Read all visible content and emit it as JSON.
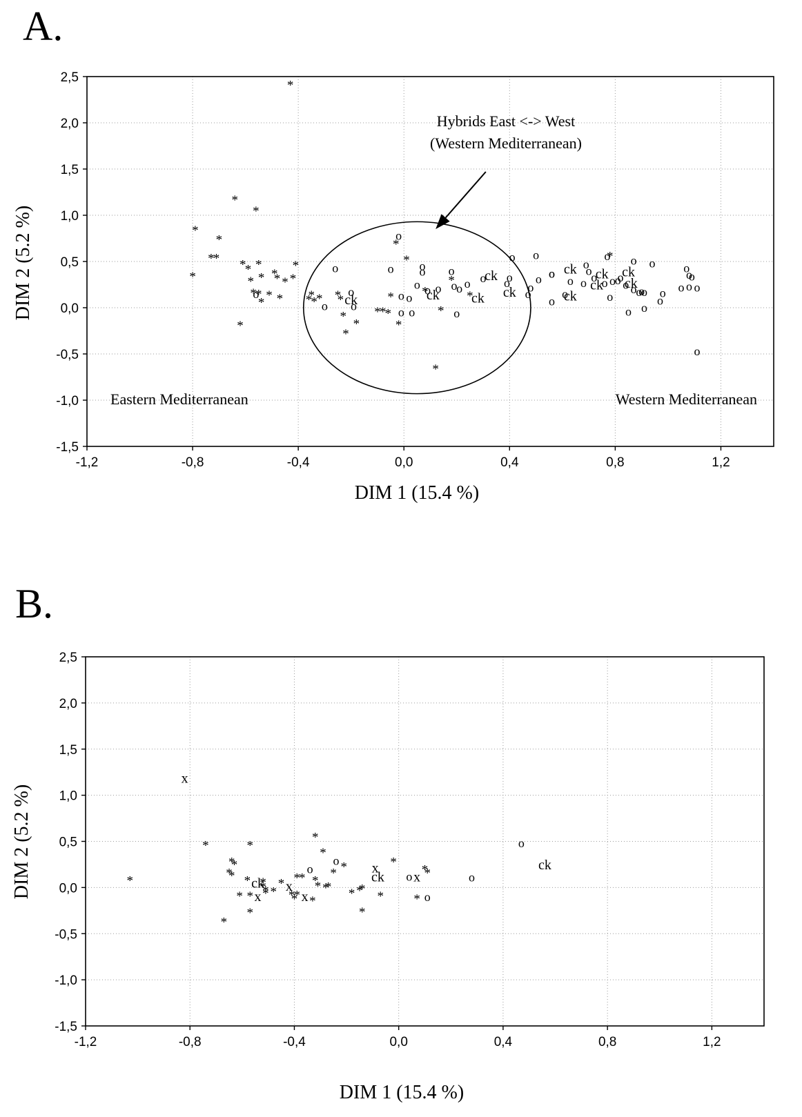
{
  "chart_data": [
    {
      "type": "scatter",
      "panel_label": "A.",
      "xlabel": "DIM 1 (15.4 %)",
      "ylabel": "DIM 2 (5.2 %)",
      "xlim": [
        -1.2,
        1.4
      ],
      "ylim": [
        -1.5,
        2.5
      ],
      "xticks": [
        -1.2,
        -0.8,
        -0.4,
        0.0,
        0.4,
        0.8,
        1.2
      ],
      "yticks": [
        -1.5,
        -1.0,
        -0.5,
        0.0,
        0.5,
        1.0,
        1.5,
        2.0,
        2.5
      ],
      "xtick_labels": [
        "-1,2",
        "-0,8",
        "-0,4",
        "0,0",
        "0,4",
        "0,8",
        "1,2"
      ],
      "ytick_labels": [
        "-1,5",
        "-1,0",
        "-0,5",
        "0,0",
        "0,5",
        "1,0",
        "1,5",
        "2,0",
        "2,5"
      ],
      "grid": true,
      "annotations": {
        "hybrids_line1": "Hybrids East <-> West",
        "hybrids_line2": "(Western Mediterranean)",
        "east": "Eastern Mediterranean",
        "west": "Western Mediterranean"
      },
      "ellipse": {
        "cx": 0.05,
        "cy": 0.0,
        "rx": 0.43,
        "ry": 0.93
      },
      "arrow": {
        "from": [
          0.31,
          1.47
        ],
        "to": [
          0.12,
          0.85
        ]
      },
      "points": [
        {
          "x": -0.43,
          "y": 2.45,
          "m": "*"
        },
        {
          "x": -0.64,
          "y": 1.21,
          "m": "*"
        },
        {
          "x": -0.56,
          "y": 1.09,
          "m": "*"
        },
        {
          "x": -0.79,
          "y": 0.88,
          "m": "*"
        },
        {
          "x": -0.7,
          "y": 0.78,
          "m": "*"
        },
        {
          "x": -0.73,
          "y": 0.58,
          "m": "*"
        },
        {
          "x": -0.71,
          "y": 0.58,
          "m": "*"
        },
        {
          "x": -0.61,
          "y": 0.51,
          "m": "*"
        },
        {
          "x": -0.59,
          "y": 0.46,
          "m": "*"
        },
        {
          "x": -0.55,
          "y": 0.51,
          "m": "*"
        },
        {
          "x": -0.49,
          "y": 0.41,
          "m": "*"
        },
        {
          "x": -0.41,
          "y": 0.5,
          "m": "*"
        },
        {
          "x": -0.8,
          "y": 0.38,
          "m": "*"
        },
        {
          "x": -0.58,
          "y": 0.33,
          "m": "*"
        },
        {
          "x": -0.54,
          "y": 0.37,
          "m": "*"
        },
        {
          "x": -0.48,
          "y": 0.36,
          "m": "*"
        },
        {
          "x": -0.45,
          "y": 0.32,
          "m": "*"
        },
        {
          "x": -0.42,
          "y": 0.36,
          "m": "*"
        },
        {
          "x": -0.57,
          "y": 0.2,
          "m": "*"
        },
        {
          "x": -0.55,
          "y": 0.19,
          "m": "*"
        },
        {
          "x": -0.51,
          "y": 0.18,
          "m": "*"
        },
        {
          "x": -0.56,
          "y": 0.15,
          "m": "o"
        },
        {
          "x": -0.54,
          "y": 0.1,
          "m": "*"
        },
        {
          "x": -0.47,
          "y": 0.14,
          "m": "*"
        },
        {
          "x": -0.62,
          "y": -0.15,
          "m": "*"
        },
        {
          "x": -0.35,
          "y": 0.18,
          "m": "*"
        },
        {
          "x": -0.36,
          "y": 0.13,
          "m": "*"
        },
        {
          "x": -0.34,
          "y": 0.11,
          "m": "*"
        },
        {
          "x": -0.32,
          "y": 0.14,
          "m": "*"
        },
        {
          "x": -0.3,
          "y": 0.02,
          "m": "o"
        },
        {
          "x": -0.26,
          "y": 0.43,
          "m": "o"
        },
        {
          "x": -0.25,
          "y": 0.18,
          "m": "*"
        },
        {
          "x": -0.24,
          "y": 0.13,
          "m": "*"
        },
        {
          "x": -0.23,
          "y": -0.05,
          "m": "*"
        },
        {
          "x": -0.22,
          "y": -0.24,
          "m": "*"
        },
        {
          "x": -0.2,
          "y": 0.17,
          "m": "o"
        },
        {
          "x": -0.2,
          "y": 0.09,
          "m": "ck"
        },
        {
          "x": -0.19,
          "y": 0.02,
          "m": "o"
        },
        {
          "x": -0.18,
          "y": -0.13,
          "m": "*"
        },
        {
          "x": -0.1,
          "y": 0.0,
          "m": "*"
        },
        {
          "x": -0.08,
          "y": 0.0,
          "m": "*"
        },
        {
          "x": -0.06,
          "y": -0.02,
          "m": "*"
        },
        {
          "x": -0.05,
          "y": 0.42,
          "m": "o"
        },
        {
          "x": -0.05,
          "y": 0.16,
          "m": "*"
        },
        {
          "x": -0.03,
          "y": 0.73,
          "m": "*"
        },
        {
          "x": -0.02,
          "y": 0.78,
          "m": "o"
        },
        {
          "x": -0.01,
          "y": -0.05,
          "m": "o"
        },
        {
          "x": -0.02,
          "y": -0.14,
          "m": "*"
        },
        {
          "x": -0.01,
          "y": 0.13,
          "m": "o"
        },
        {
          "x": 0.01,
          "y": 0.56,
          "m": "*"
        },
        {
          "x": 0.02,
          "y": 0.11,
          "m": "o"
        },
        {
          "x": 0.03,
          "y": -0.05,
          "m": "o"
        },
        {
          "x": 0.05,
          "y": 0.25,
          "m": "o"
        },
        {
          "x": 0.07,
          "y": 0.45,
          "m": "o"
        },
        {
          "x": 0.07,
          "y": 0.39,
          "m": "o"
        },
        {
          "x": 0.08,
          "y": 0.22,
          "m": "*"
        },
        {
          "x": 0.09,
          "y": 0.19,
          "m": "o"
        },
        {
          "x": 0.11,
          "y": 0.14,
          "m": "ck"
        },
        {
          "x": 0.13,
          "y": 0.21,
          "m": "o"
        },
        {
          "x": 0.14,
          "y": 0.01,
          "m": "*"
        },
        {
          "x": 0.12,
          "y": -0.62,
          "m": "*"
        },
        {
          "x": 0.18,
          "y": 0.4,
          "m": "o"
        },
        {
          "x": 0.18,
          "y": 0.34,
          "m": "*"
        },
        {
          "x": 0.19,
          "y": 0.24,
          "m": "o"
        },
        {
          "x": 0.2,
          "y": -0.06,
          "m": "o"
        },
        {
          "x": 0.21,
          "y": 0.21,
          "m": "o"
        },
        {
          "x": 0.24,
          "y": 0.26,
          "m": "o"
        },
        {
          "x": 0.25,
          "y": 0.17,
          "m": "*"
        },
        {
          "x": 0.28,
          "y": 0.11,
          "m": "ck"
        },
        {
          "x": 0.3,
          "y": 0.32,
          "m": "o"
        },
        {
          "x": 0.33,
          "y": 0.35,
          "m": "ck"
        },
        {
          "x": 0.39,
          "y": 0.27,
          "m": "o"
        },
        {
          "x": 0.4,
          "y": 0.33,
          "m": "o"
        },
        {
          "x": 0.4,
          "y": 0.17,
          "m": "ck"
        },
        {
          "x": 0.41,
          "y": 0.55,
          "m": "o"
        },
        {
          "x": 0.47,
          "y": 0.15,
          "m": "o"
        },
        {
          "x": 0.48,
          "y": 0.22,
          "m": "o"
        },
        {
          "x": 0.5,
          "y": 0.57,
          "m": "o"
        },
        {
          "x": 0.51,
          "y": 0.31,
          "m": "o"
        },
        {
          "x": 0.56,
          "y": 0.37,
          "m": "o"
        },
        {
          "x": 0.56,
          "y": 0.37,
          "m": "o"
        },
        {
          "x": 0.56,
          "y": 0.07,
          "m": "o"
        },
        {
          "x": 0.61,
          "y": 0.15,
          "m": "o"
        },
        {
          "x": 0.63,
          "y": 0.42,
          "m": "ck"
        },
        {
          "x": 0.63,
          "y": 0.29,
          "m": "o"
        },
        {
          "x": 0.63,
          "y": 0.13,
          "m": "ck"
        },
        {
          "x": 0.68,
          "y": 0.27,
          "m": "o"
        },
        {
          "x": 0.69,
          "y": 0.47,
          "m": "o"
        },
        {
          "x": 0.7,
          "y": 0.4,
          "m": "o"
        },
        {
          "x": 0.72,
          "y": 0.33,
          "m": "o"
        },
        {
          "x": 0.73,
          "y": 0.25,
          "m": "ck"
        },
        {
          "x": 0.75,
          "y": 0.37,
          "m": "ck"
        },
        {
          "x": 0.76,
          "y": 0.27,
          "m": "o"
        },
        {
          "x": 0.77,
          "y": 0.56,
          "m": "o"
        },
        {
          "x": 0.78,
          "y": 0.6,
          "m": "*"
        },
        {
          "x": 0.78,
          "y": 0.12,
          "m": "o"
        },
        {
          "x": 0.79,
          "y": 0.29,
          "m": "o"
        },
        {
          "x": 0.81,
          "y": 0.3,
          "m": "o"
        },
        {
          "x": 0.82,
          "y": 0.33,
          "m": "o"
        },
        {
          "x": 0.84,
          "y": 0.25,
          "m": "o"
        },
        {
          "x": 0.85,
          "y": 0.39,
          "m": "ck"
        },
        {
          "x": 0.86,
          "y": 0.27,
          "m": "ck"
        },
        {
          "x": 0.87,
          "y": 0.51,
          "m": "o"
        },
        {
          "x": 0.87,
          "y": 0.2,
          "m": "o"
        },
        {
          "x": 0.85,
          "y": -0.04,
          "m": "o"
        },
        {
          "x": 0.89,
          "y": 0.17,
          "m": "o"
        },
        {
          "x": 0.9,
          "y": 0.18,
          "m": "o"
        },
        {
          "x": 0.91,
          "y": 0.0,
          "m": "o"
        },
        {
          "x": 0.91,
          "y": 0.17,
          "m": "o"
        },
        {
          "x": 0.94,
          "y": 0.48,
          "m": "o"
        },
        {
          "x": 0.97,
          "y": 0.08,
          "m": "o"
        },
        {
          "x": 0.98,
          "y": 0.16,
          "m": "o"
        },
        {
          "x": 1.05,
          "y": 0.22,
          "m": "o"
        },
        {
          "x": 1.07,
          "y": 0.43,
          "m": "o"
        },
        {
          "x": 1.08,
          "y": 0.36,
          "m": "o"
        },
        {
          "x": 1.08,
          "y": 0.23,
          "m": "o"
        },
        {
          "x": 1.09,
          "y": 0.34,
          "m": "o"
        },
        {
          "x": 1.11,
          "y": 0.22,
          "m": "o"
        },
        {
          "x": 1.11,
          "y": -0.47,
          "m": "o"
        }
      ]
    },
    {
      "type": "scatter",
      "panel_label": "B.",
      "xlabel": "DIM 1 (15.4 %)",
      "ylabel": "DIM 2 (5.2 %)",
      "xlim": [
        -1.2,
        1.4
      ],
      "ylim": [
        -1.5,
        2.5
      ],
      "xticks": [
        -1.2,
        -0.8,
        -0.4,
        0.0,
        0.4,
        0.8,
        1.2
      ],
      "yticks": [
        -1.5,
        -1.0,
        -0.5,
        0.0,
        0.5,
        1.0,
        1.5,
        2.0,
        2.5
      ],
      "xtick_labels": [
        "-1,2",
        "-0,8",
        "-0,4",
        "0,0",
        "0,4",
        "0,8",
        "1,2"
      ],
      "ytick_labels": [
        "-1,5",
        "-1,0",
        "-0,5",
        "0,0",
        "0,5",
        "1,0",
        "1,5",
        "2,0",
        "2,5"
      ],
      "grid": true,
      "points": [
        {
          "x": -0.82,
          "y": 1.18,
          "m": "x"
        },
        {
          "x": -1.03,
          "y": 0.12,
          "m": "*"
        },
        {
          "x": -0.74,
          "y": 0.5,
          "m": "*"
        },
        {
          "x": -0.57,
          "y": 0.5,
          "m": "*"
        },
        {
          "x": -0.64,
          "y": 0.32,
          "m": "*"
        },
        {
          "x": -0.63,
          "y": 0.29,
          "m": "*"
        },
        {
          "x": -0.65,
          "y": 0.2,
          "m": "*"
        },
        {
          "x": -0.64,
          "y": 0.17,
          "m": "*"
        },
        {
          "x": -0.67,
          "y": -0.33,
          "m": "*"
        },
        {
          "x": -0.61,
          "y": -0.05,
          "m": "*"
        },
        {
          "x": -0.58,
          "y": 0.12,
          "m": "*"
        },
        {
          "x": -0.57,
          "y": -0.05,
          "m": "*"
        },
        {
          "x": -0.57,
          "y": -0.23,
          "m": "*"
        },
        {
          "x": -0.54,
          "y": 0.05,
          "m": "ck"
        },
        {
          "x": -0.54,
          "y": -0.1,
          "m": "x"
        },
        {
          "x": -0.52,
          "y": 0.1,
          "m": "*"
        },
        {
          "x": -0.52,
          "y": 0.05,
          "m": "*"
        },
        {
          "x": -0.51,
          "y": 0.01,
          "m": "*"
        },
        {
          "x": -0.51,
          "y": -0.02,
          "m": "*"
        },
        {
          "x": -0.48,
          "y": 0.0,
          "m": "*"
        },
        {
          "x": -0.45,
          "y": 0.09,
          "m": "*"
        },
        {
          "x": -0.42,
          "y": 0.01,
          "m": "x"
        },
        {
          "x": -0.41,
          "y": -0.04,
          "m": "*"
        },
        {
          "x": -0.4,
          "y": -0.08,
          "m": "*"
        },
        {
          "x": -0.39,
          "y": 0.15,
          "m": "*"
        },
        {
          "x": -0.39,
          "y": -0.04,
          "m": "*"
        },
        {
          "x": -0.37,
          "y": 0.15,
          "m": "*"
        },
        {
          "x": -0.36,
          "y": -0.1,
          "m": "x"
        },
        {
          "x": -0.34,
          "y": 0.2,
          "m": "o"
        },
        {
          "x": -0.33,
          "y": -0.1,
          "m": "*"
        },
        {
          "x": -0.32,
          "y": 0.59,
          "m": "*"
        },
        {
          "x": -0.32,
          "y": 0.12,
          "m": "*"
        },
        {
          "x": -0.31,
          "y": 0.06,
          "m": "*"
        },
        {
          "x": -0.29,
          "y": 0.42,
          "m": "*"
        },
        {
          "x": -0.28,
          "y": 0.04,
          "m": "*"
        },
        {
          "x": -0.27,
          "y": 0.05,
          "m": "*"
        },
        {
          "x": -0.25,
          "y": 0.2,
          "m": "*"
        },
        {
          "x": -0.24,
          "y": 0.29,
          "m": "o"
        },
        {
          "x": -0.21,
          "y": 0.27,
          "m": "*"
        },
        {
          "x": -0.18,
          "y": -0.02,
          "m": "*"
        },
        {
          "x": -0.15,
          "y": 0.01,
          "m": "*"
        },
        {
          "x": -0.14,
          "y": 0.03,
          "m": "*"
        },
        {
          "x": -0.14,
          "y": -0.22,
          "m": "*"
        },
        {
          "x": -0.09,
          "y": 0.21,
          "m": "x"
        },
        {
          "x": -0.08,
          "y": 0.12,
          "m": "ck"
        },
        {
          "x": -0.07,
          "y": -0.05,
          "m": "*"
        },
        {
          "x": -0.02,
          "y": 0.32,
          "m": "*"
        },
        {
          "x": 0.04,
          "y": 0.12,
          "m": "o"
        },
        {
          "x": 0.07,
          "y": 0.11,
          "m": "x"
        },
        {
          "x": 0.07,
          "y": -0.08,
          "m": "*"
        },
        {
          "x": 0.1,
          "y": 0.24,
          "m": "*"
        },
        {
          "x": 0.11,
          "y": 0.2,
          "m": "*"
        },
        {
          "x": 0.11,
          "y": -0.1,
          "m": "o"
        },
        {
          "x": 0.28,
          "y": 0.11,
          "m": "o"
        },
        {
          "x": 0.47,
          "y": 0.48,
          "m": "o"
        },
        {
          "x": 0.56,
          "y": 0.25,
          "m": "ck"
        }
      ]
    }
  ]
}
